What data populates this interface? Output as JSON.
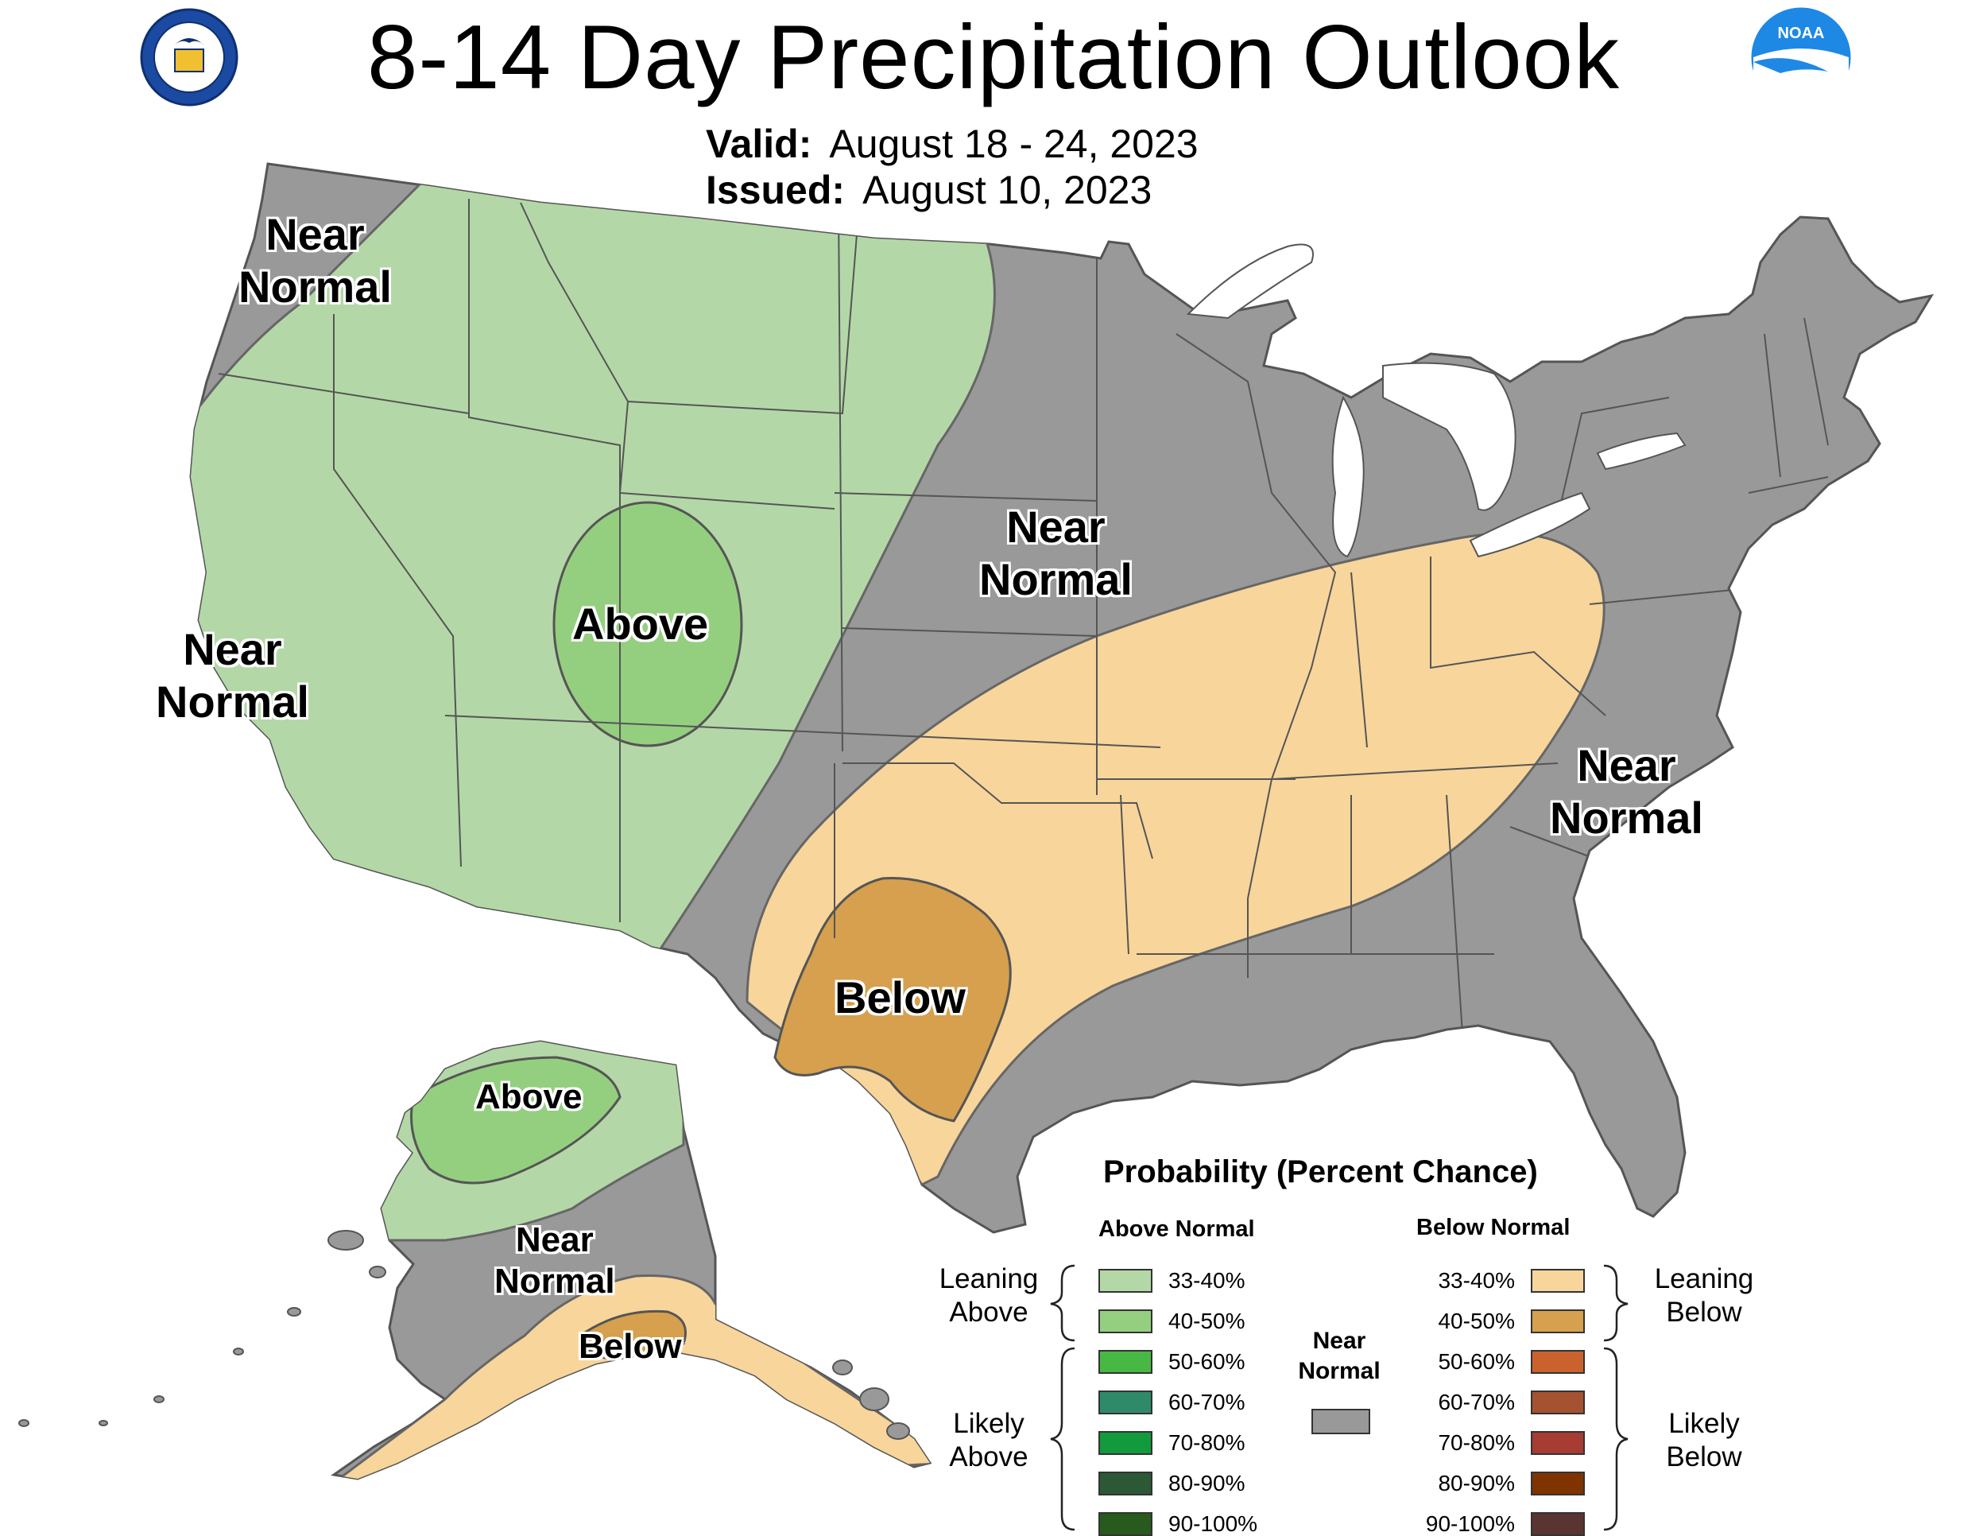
{
  "header": {
    "title": "8-14 Day Precipitation Outlook",
    "valid_label": "Valid:",
    "valid_value": "August 18 - 24, 2023",
    "issued_label": "Issued:",
    "issued_value": "August 10, 2023"
  },
  "logos": {
    "commerce_seal_text": "DEPARTMENT OF COMMERCE · UNITED STATES OF AMERICA",
    "noaa_text": "NOAA"
  },
  "map_labels": {
    "northwest": [
      "Near",
      "Normal"
    ],
    "west_coast": [
      "Near",
      "Normal"
    ],
    "four_corners": "Above",
    "central_plains": [
      "Near",
      "Normal"
    ],
    "texas": "Below",
    "southeast": [
      "Near",
      "Normal"
    ],
    "alaska_north": "Above",
    "alaska_central": [
      "Near",
      "Normal"
    ],
    "alaska_south": "Below"
  },
  "legend": {
    "title": "Probability (Percent Chance)",
    "above_header": "Above Normal",
    "below_header": "Below Normal",
    "near_label": [
      "Near",
      "Normal"
    ],
    "near_color": "#999999",
    "leaning_above": [
      "Leaning",
      "Above"
    ],
    "likely_above": [
      "Likely",
      "Above"
    ],
    "leaning_below": [
      "Leaning",
      "Below"
    ],
    "likely_below": [
      "Likely",
      "Below"
    ],
    "above": [
      {
        "label": "33-40%",
        "color": "#b4d7a7"
      },
      {
        "label": "40-50%",
        "color": "#94cf80"
      },
      {
        "label": "50-60%",
        "color": "#48b844"
      },
      {
        "label": "60-70%",
        "color": "#2f8a6a"
      },
      {
        "label": "70-80%",
        "color": "#129a3c"
      },
      {
        "label": "80-90%",
        "color": "#2c5835"
      },
      {
        "label": "90-100%",
        "color": "#285a1e"
      }
    ],
    "below": [
      {
        "label": "33-40%",
        "color": "#f8d59b"
      },
      {
        "label": "40-50%",
        "color": "#d6a04e"
      },
      {
        "label": "50-60%",
        "color": "#c9622d"
      },
      {
        "label": "60-70%",
        "color": "#a55230"
      },
      {
        "label": "70-80%",
        "color": "#a63c32"
      },
      {
        "label": "80-90%",
        "color": "#7e3300"
      },
      {
        "label": "90-100%",
        "color": "#5a3431"
      }
    ]
  },
  "colors": {
    "near_normal_fill": "#999999",
    "above_lean_fill": "#b4d7a7",
    "above_40_fill": "#94cf80",
    "below_lean_fill": "#f8d59b",
    "below_40_fill": "#d6a04e",
    "border": "#555555"
  }
}
